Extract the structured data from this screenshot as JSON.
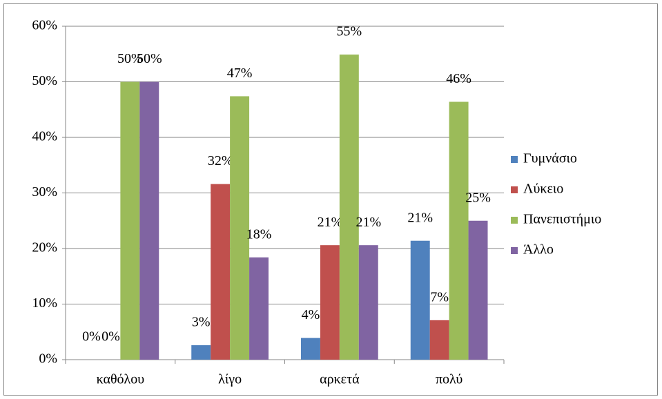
{
  "chart_data": {
    "type": "bar",
    "categories": [
      "καθόλου",
      "λίγο",
      "αρκετά",
      "πολύ"
    ],
    "series": [
      {
        "name": "Γυμνάσιο",
        "color": "#4f81bd",
        "values": [
          0,
          2.6,
          3.9,
          21.4
        ],
        "value_labels": [
          "0%",
          "3%",
          "4%",
          "21%"
        ]
      },
      {
        "name": "Λύκειο",
        "color": "#c0504d",
        "values": [
          0,
          31.6,
          20.6,
          7.1
        ],
        "value_labels": [
          "0%",
          "32%",
          "21%",
          "7%"
        ]
      },
      {
        "name": "Πανεπιστήμιο",
        "color": "#9bbb59",
        "values": [
          50,
          47.4,
          54.9,
          46.4
        ],
        "value_labels": [
          "50%",
          "47%",
          "55%",
          "46%"
        ]
      },
      {
        "name": "Άλλο",
        "color": "#8064a2",
        "values": [
          50,
          18.4,
          20.6,
          25
        ],
        "value_labels": [
          "50%",
          "18%",
          "21%",
          "25%"
        ]
      }
    ],
    "ylim": [
      0,
      60
    ],
    "yticks": [
      {
        "value": 0,
        "label": "0%"
      },
      {
        "value": 10,
        "label": "10%"
      },
      {
        "value": 20,
        "label": "20%"
      },
      {
        "value": 30,
        "label": "30%"
      },
      {
        "value": 40,
        "label": "40%"
      },
      {
        "value": 50,
        "label": "50%"
      },
      {
        "value": 60,
        "label": "60%"
      }
    ],
    "grid": true,
    "legend": "right"
  }
}
